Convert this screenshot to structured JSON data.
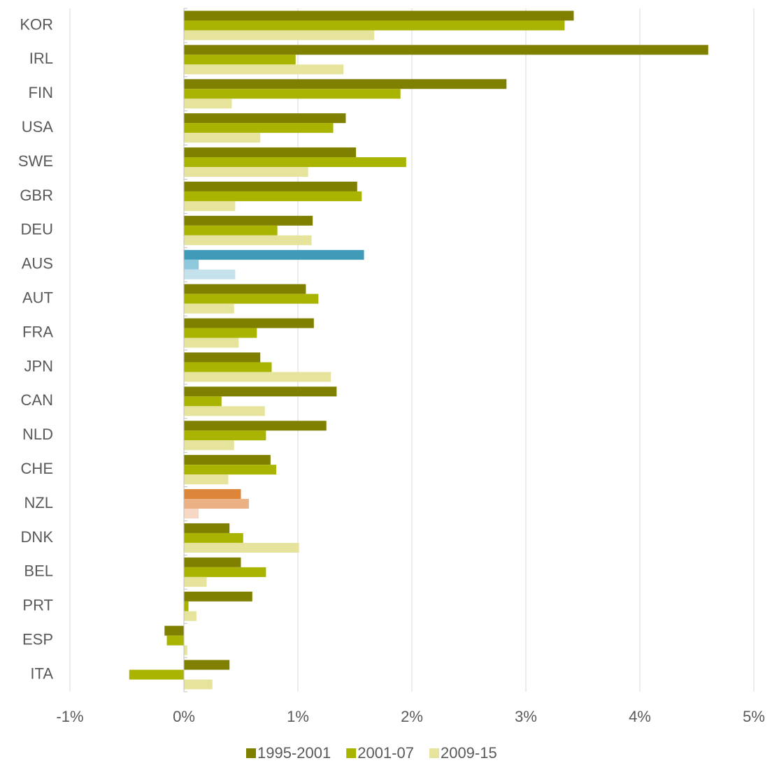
{
  "chart_data": {
    "type": "hbar",
    "categories": [
      "KOR",
      "IRL",
      "FIN",
      "USA",
      "SWE",
      "GBR",
      "DEU",
      "AUS",
      "AUT",
      "FRA",
      "JPN",
      "CAN",
      "NLD",
      "CHE",
      "NZL",
      "DNK",
      "BEL",
      "PRT",
      "ESP",
      "ITA"
    ],
    "series": [
      {
        "name": "1995-2001",
        "color": "#808000",
        "values": [
          3.42,
          4.6,
          2.83,
          1.42,
          1.51,
          1.52,
          1.13,
          1.58,
          1.07,
          1.14,
          0.67,
          1.34,
          1.25,
          0.76,
          0.5,
          0.4,
          0.5,
          0.6,
          -0.17,
          0.4
        ]
      },
      {
        "name": "2001-07",
        "color": "#a8b400",
        "values": [
          3.34,
          0.98,
          1.9,
          1.31,
          1.95,
          1.56,
          0.82,
          0.13,
          1.18,
          0.64,
          0.77,
          0.33,
          0.72,
          0.81,
          0.57,
          0.52,
          0.72,
          0.04,
          -0.15,
          -0.48
        ]
      },
      {
        "name": "2009-15",
        "color": "#e6e49c",
        "values": [
          1.67,
          1.4,
          0.42,
          0.67,
          1.09,
          0.45,
          1.12,
          0.45,
          0.44,
          0.48,
          1.29,
          0.71,
          0.44,
          0.39,
          0.13,
          1.01,
          0.2,
          0.11,
          0.03,
          0.25
        ]
      }
    ],
    "highlights": [
      {
        "index": 7,
        "colors": [
          "#3f9ab8",
          "#8ec8dc",
          "#c5e2ec"
        ]
      },
      {
        "index": 14,
        "colors": [
          "#dd8538",
          "#eab185",
          "#f6d8c4"
        ]
      }
    ],
    "xlim": [
      -1,
      5
    ],
    "xticks": [
      {
        "value": -1,
        "label": "-1%"
      },
      {
        "value": 0,
        "label": "0%"
      },
      {
        "value": 1,
        "label": "1%"
      },
      {
        "value": 2,
        "label": "2%"
      },
      {
        "value": 3,
        "label": "3%"
      },
      {
        "value": 4,
        "label": "4%"
      },
      {
        "value": 5,
        "label": "5%"
      }
    ],
    "grid": true,
    "legend": "bottom"
  }
}
